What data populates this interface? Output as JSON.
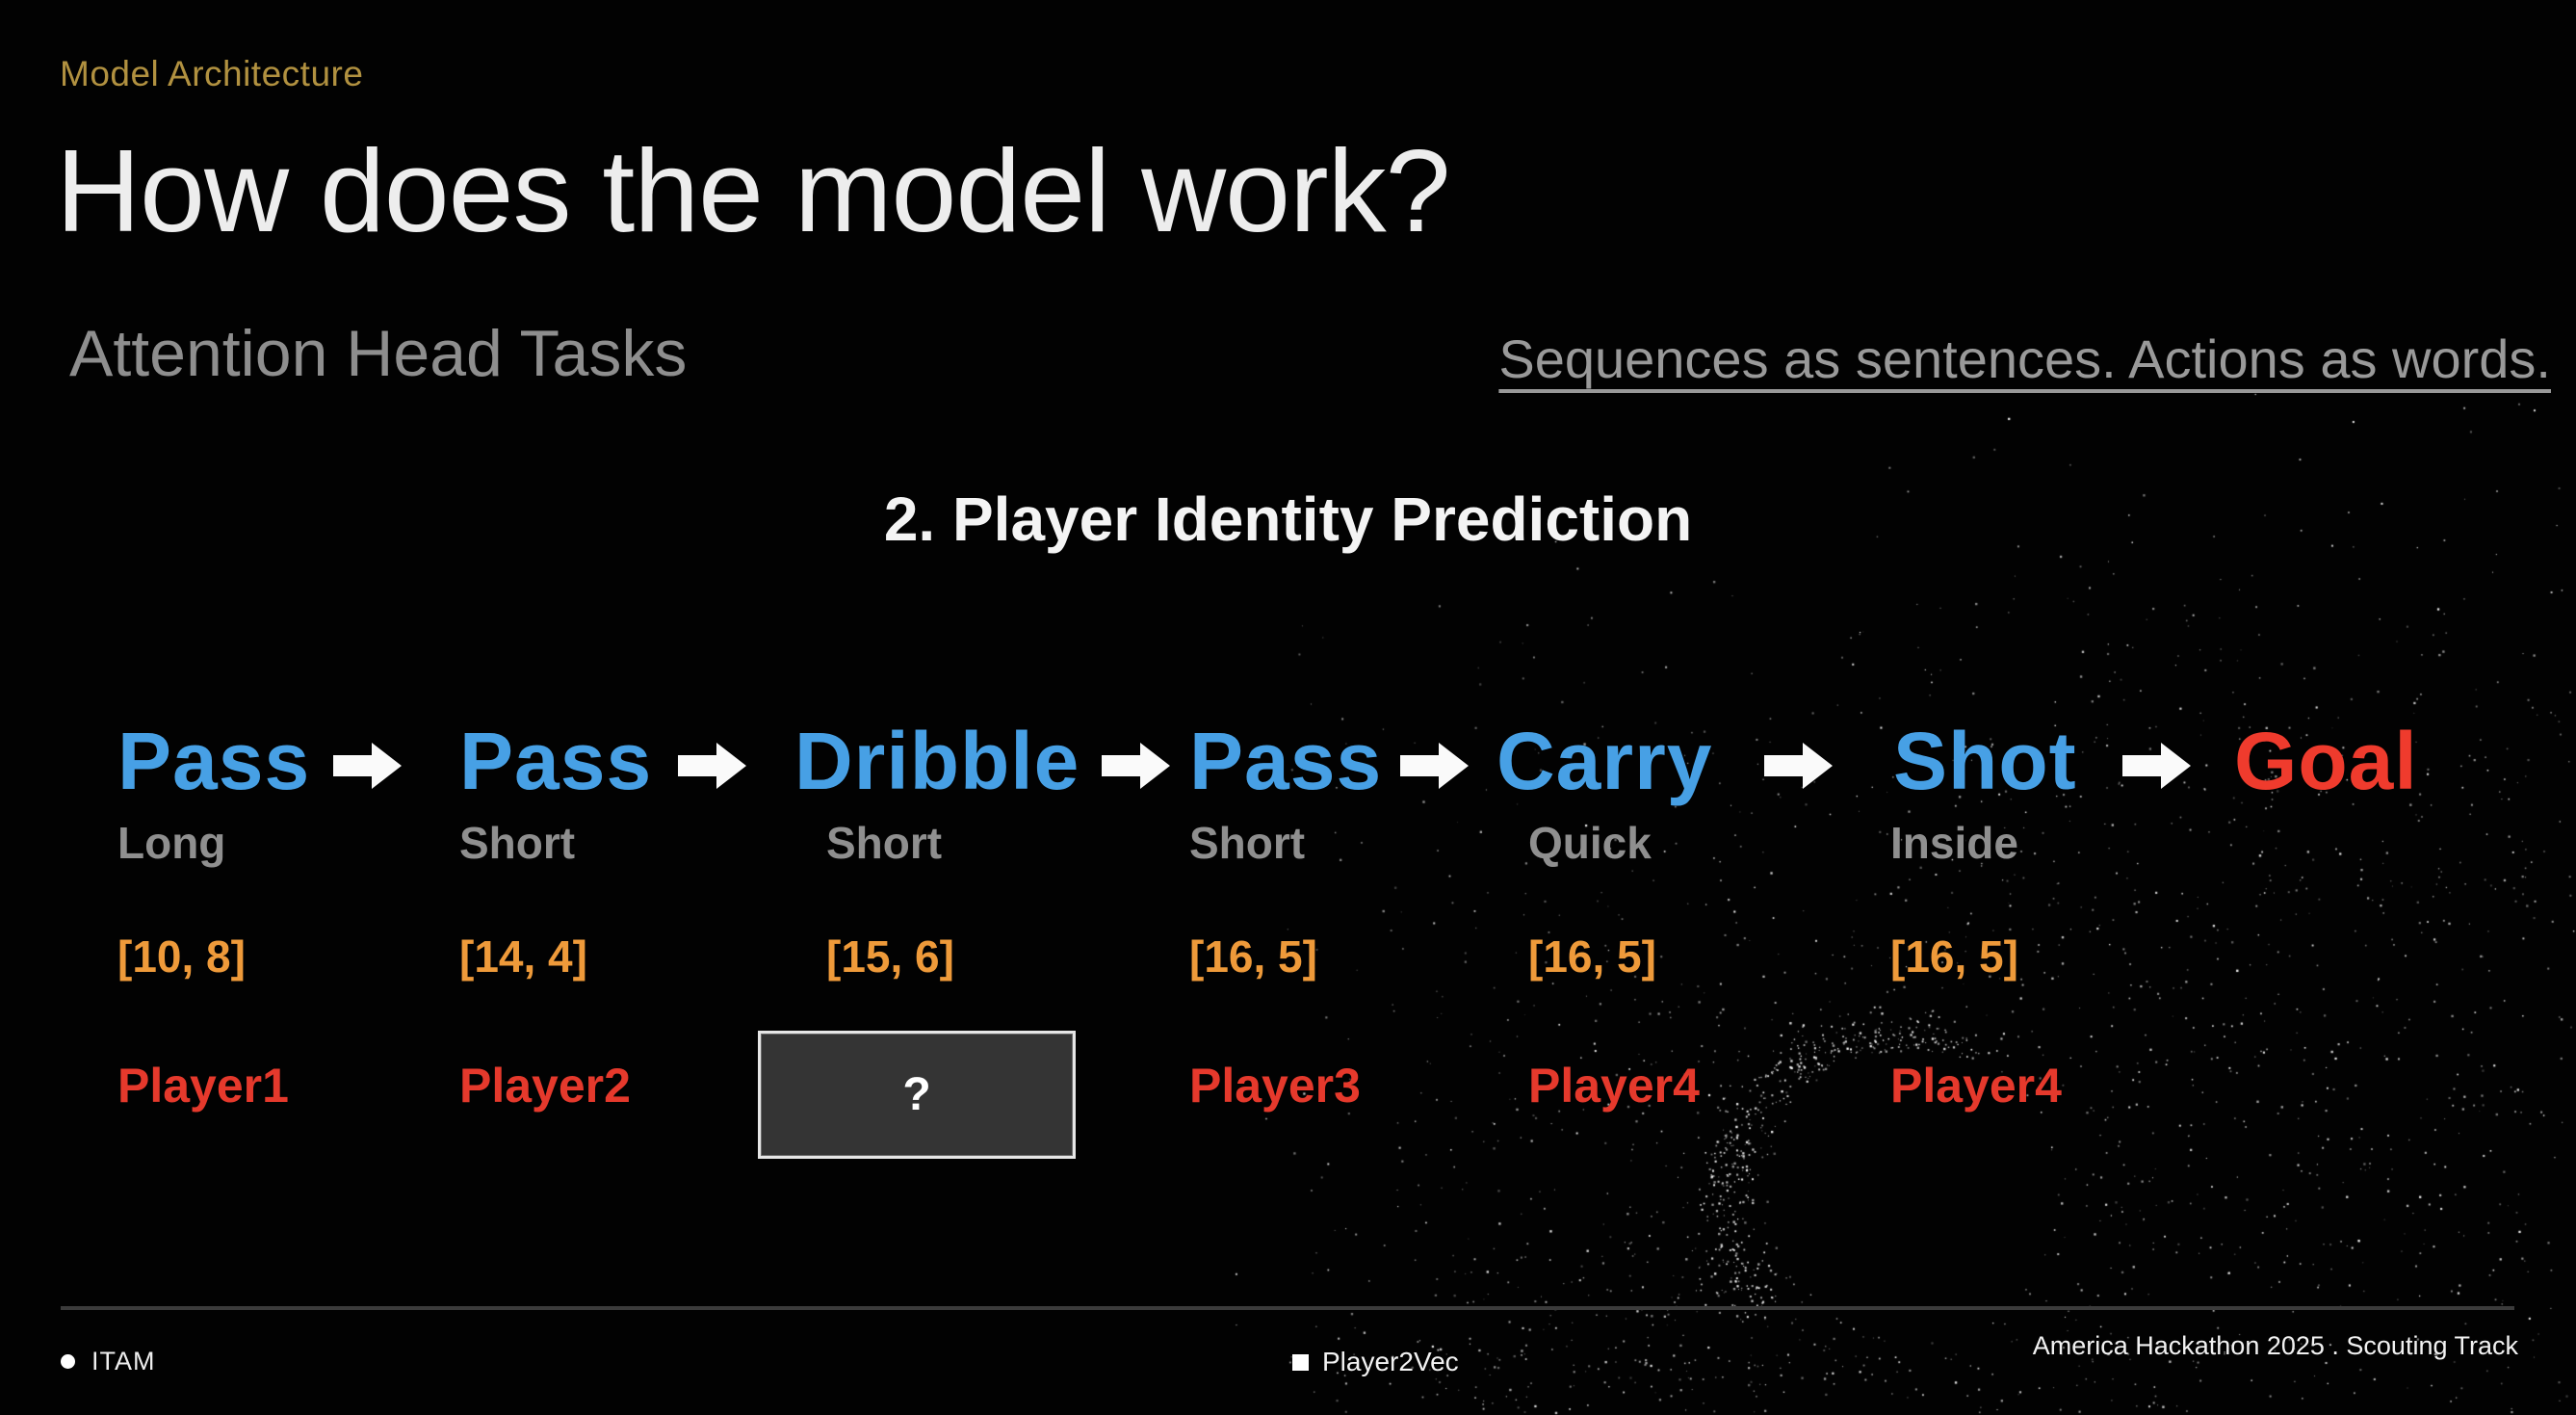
{
  "slide": {
    "kicker": "Model Architecture",
    "title": "How does the model work?",
    "section_heading": "Attention Head Tasks",
    "tagline": "Sequences as sentences. Actions as words.",
    "step_title": "2. Player Identity Prediction"
  },
  "sequence": {
    "steps": [
      {
        "action": "Pass",
        "modifier": "Long",
        "coords": "[10, 8]",
        "player": "Player1"
      },
      {
        "action": "Pass",
        "modifier": "Short",
        "coords": "[14, 4]",
        "player": "Player2"
      },
      {
        "action": "Dribble",
        "modifier": "Short",
        "coords": "[15, 6]",
        "player": "?"
      },
      {
        "action": "Pass",
        "modifier": "Short",
        "coords": "[16, 5]",
        "player": "Player3"
      },
      {
        "action": "Carry",
        "modifier": "Quick",
        "coords": "[16, 5]",
        "player": "Player4"
      },
      {
        "action": "Shot",
        "modifier": "Inside",
        "coords": "[16, 5]",
        "player": "Player4"
      },
      {
        "action": "Goal"
      }
    ],
    "unknown_player_label": "?"
  },
  "footer": {
    "left": "ITAM",
    "center": "Player2Vec",
    "right": "America Hackathon 2025 . Scouting Track"
  },
  "colors": {
    "accent_gold": "#B19140",
    "action_blue": "#47A0E5",
    "goal_red": "#EF3B2D",
    "coords_orange": "#EE9A3A",
    "player_red": "#E5392C",
    "muted_gray": "#8E8E8E",
    "background": "#020202"
  }
}
